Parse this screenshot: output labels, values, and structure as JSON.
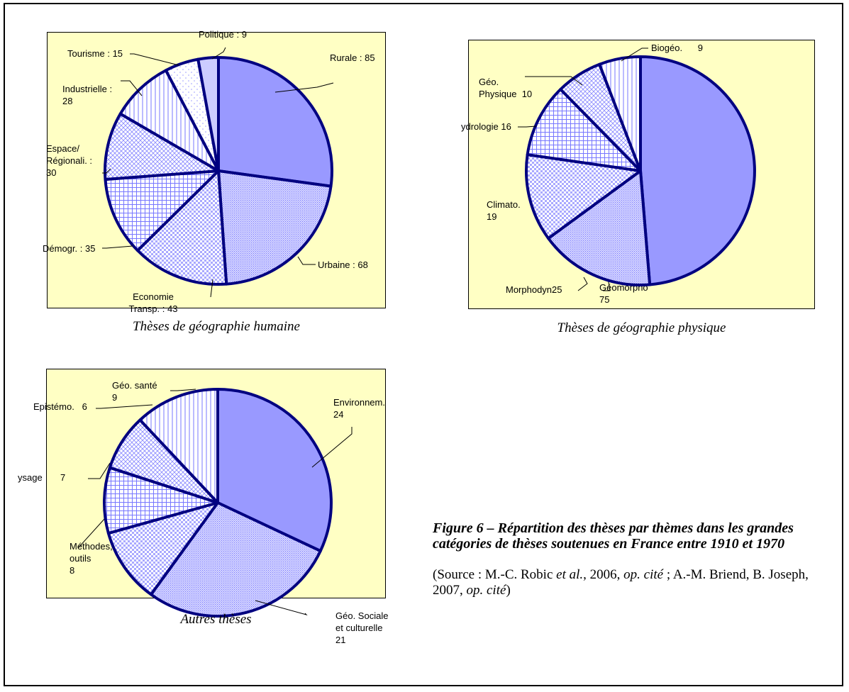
{
  "chart_data": [
    {
      "type": "pie",
      "caption": "Thèses de géographie humaine",
      "slices": [
        {
          "label": [
            "Rurale : 85"
          ],
          "value": 85
        },
        {
          "label": [
            "Urbaine : 68"
          ],
          "value": 68
        },
        {
          "label": [
            "Economie",
            "Transp. : 43"
          ],
          "value": 43
        },
        {
          "label": [
            "Démogr. : 35"
          ],
          "value": 35
        },
        {
          "label": [
            "Espace/",
            "Régionali. :",
            "30"
          ],
          "value": 30
        },
        {
          "label": [
            "Industrielle :",
            "28"
          ],
          "value": 28
        },
        {
          "label": [
            "Tourisme : 15"
          ],
          "value": 15
        },
        {
          "label": [
            "Politique : 9"
          ],
          "value": 9
        }
      ]
    },
    {
      "type": "pie",
      "caption": "Thèses de géographie physique",
      "slices": [
        {
          "label": [
            "Géomorpho",
            "75"
          ],
          "value": 75
        },
        {
          "label": [
            "Morphodyn25"
          ],
          "value": 25
        },
        {
          "label": [
            "Climato.",
            "19"
          ],
          "value": 19
        },
        {
          "label": [
            "ydrologie 16"
          ],
          "value": 16
        },
        {
          "label": [
            "Géo.",
            "Physique  10"
          ],
          "value": 10
        },
        {
          "label": [
            "Biogéo.      9"
          ],
          "value": 9
        }
      ]
    },
    {
      "type": "pie",
      "caption": "Autres thèses",
      "slices": [
        {
          "label": [
            "Environnem.",
            "24"
          ],
          "value": 24
        },
        {
          "label": [
            "Géo. Sociale",
            "et culturelle",
            "21"
          ],
          "value": 21
        },
        {
          "label": [
            "Méthodes,",
            "outils",
            "8"
          ],
          "value": 8
        },
        {
          "label": [
            "ysage       7"
          ],
          "value": 7
        },
        {
          "label": [
            "Epistémo.   6"
          ],
          "value": 6
        },
        {
          "label": [
            "Géo. santé",
            "9"
          ],
          "value": 9
        }
      ]
    }
  ],
  "figure": {
    "title": "Figure 6 – Répartition des thèses par thèmes dans les grandes catégories de thèses soutenues en France entre 1910 et 1970",
    "source_prefix": "(Source : M.-C. Robic ",
    "source_etal": "et al.",
    "source_mid1": ", 2006, ",
    "source_opcite1": "op. cité",
    "source_mid2": " ; A.-M. Briend, B. Joseph, 2007, ",
    "source_opcite2": "op. cité",
    "source_suffix": ")"
  },
  "colors": {
    "plot_bg": "#ffffc4",
    "slice_fill": "#9999ff",
    "slice_light": "#ffffff",
    "slice_stroke": "#000080"
  }
}
